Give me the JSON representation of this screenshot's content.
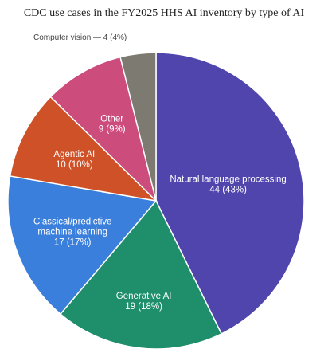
{
  "chart_data": {
    "type": "pie",
    "title": "CDC use cases in the FY2025 HHS AI inventory by type of AI",
    "categories": [
      "Natural language processing",
      "Generative AI",
      "Classical/predictive machine learning",
      "Agentic AI",
      "Other",
      "Computer vision"
    ],
    "values": [
      44,
      19,
      17,
      10,
      9,
      4
    ],
    "percentages": [
      43,
      18,
      17,
      10,
      9,
      4
    ],
    "slice_labels": [
      [
        "Natural language processing",
        "44 (43%)"
      ],
      [
        "Generative AI",
        "19 (18%)"
      ],
      [
        "Classical/predictive",
        "machine learning",
        "17 (17%)"
      ],
      [
        "Agentic AI",
        "10 (10%)"
      ],
      [
        "Other",
        "9 (9%)"
      ],
      [
        "Computer vision — 4 (4%)"
      ]
    ],
    "colors": [
      "#4f45ad",
      "#1f8f6b",
      "#3a7fdb",
      "#cf5128",
      "#cc4c7c",
      "#7d7a72"
    ],
    "start_angle": "12 o'clock",
    "direction": "clockwise",
    "legend": "none"
  }
}
